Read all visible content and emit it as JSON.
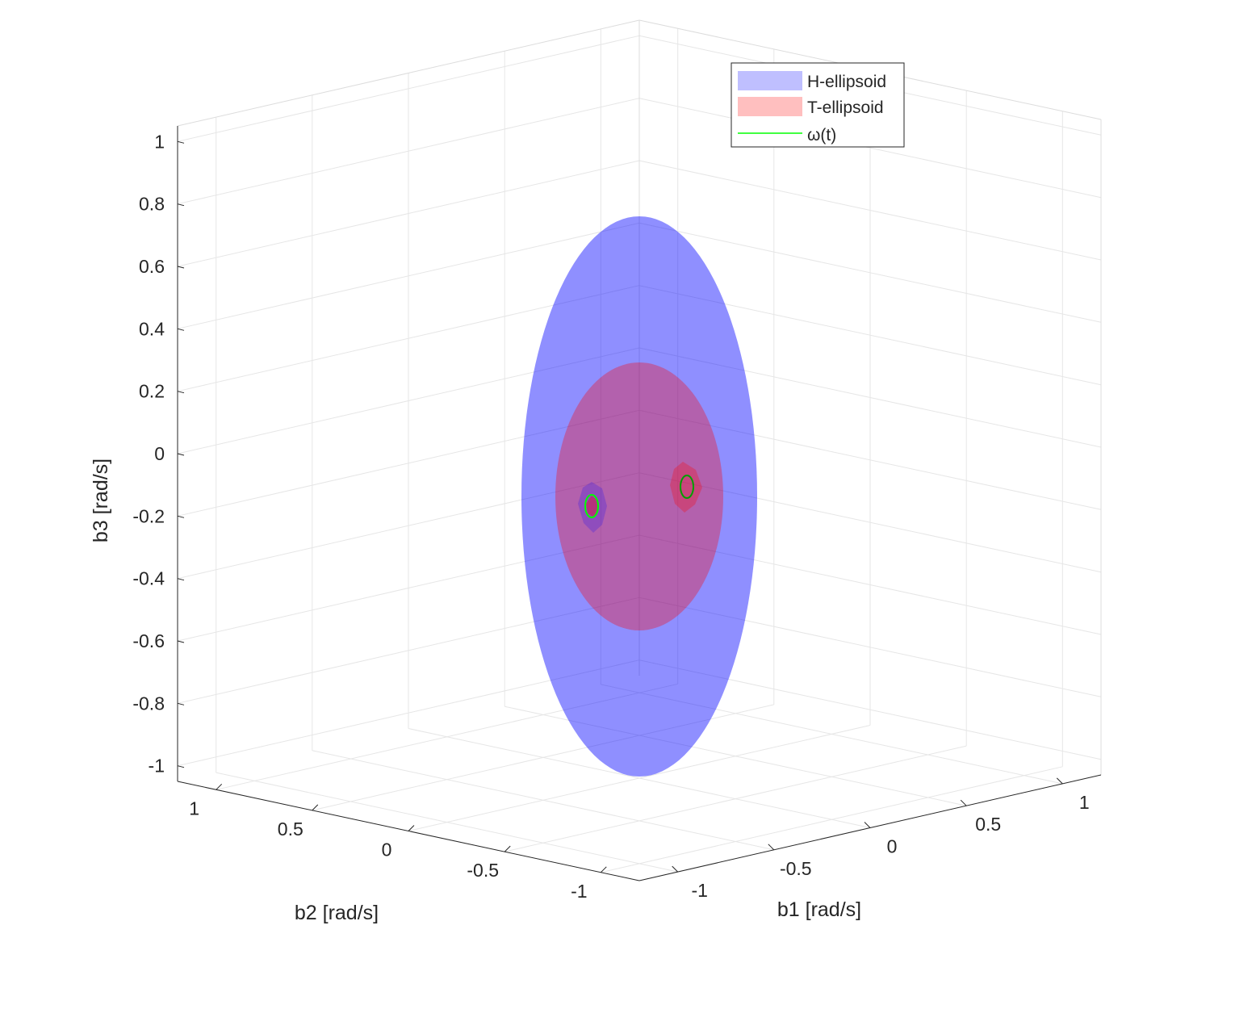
{
  "chart_data": {
    "type": "surface3d",
    "xlabel": "b1 [rad/s]",
    "ylabel": "b2 [rad/s]",
    "zlabel": "b3 [rad/s]",
    "xlim": [
      -1.2,
      1.2
    ],
    "ylim": [
      -1.2,
      1.2
    ],
    "zlim": [
      -1.05,
      1.05
    ],
    "x_ticks": [
      "-1",
      "-0.5",
      "0",
      "0.5",
      "1"
    ],
    "y_ticks": [
      "-1",
      "-0.5",
      "0",
      "0.5",
      "1"
    ],
    "z_ticks": [
      "-1",
      "-0.8",
      "-0.6",
      "-0.4",
      "-0.2",
      "0",
      "0.2",
      "0.4",
      "0.6",
      "0.8",
      "1"
    ],
    "grid": true,
    "legend_position": "top-right",
    "series": [
      {
        "name": "H-ellipsoid",
        "color": "#0000ff",
        "legend_color": "#bfbfff",
        "semi_axes": [
          0.9,
          0.5,
          1.1
        ]
      },
      {
        "name": "T-ellipsoid",
        "color": "#ff0000",
        "legend_color": "#ffbfbf",
        "semi_axes": [
          0.6,
          0.35,
          0.52
        ]
      },
      {
        "name": "ω(t)",
        "color": "#00ff00"
      }
    ]
  }
}
